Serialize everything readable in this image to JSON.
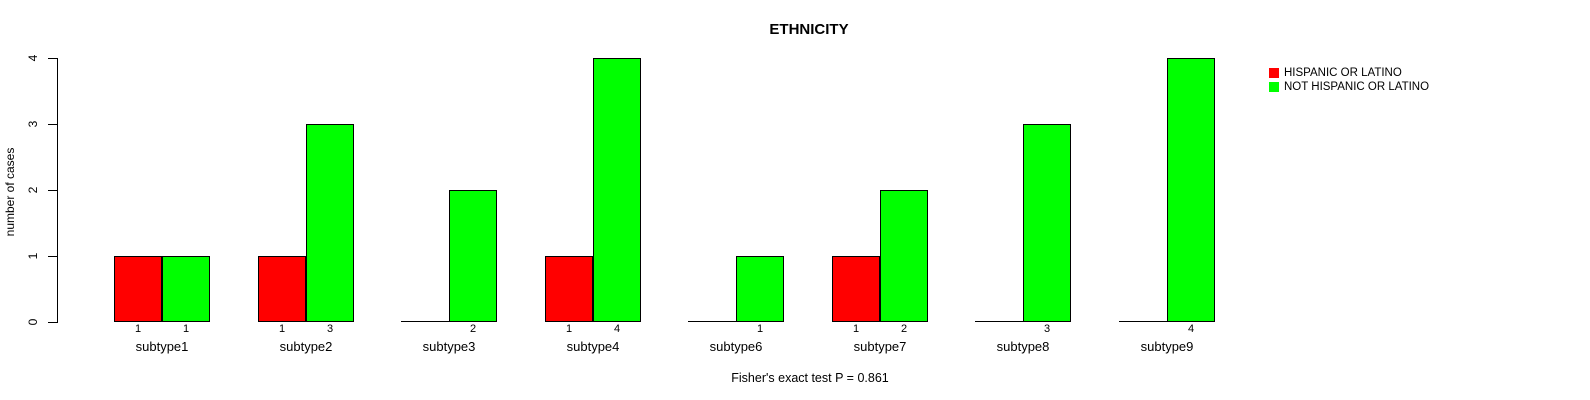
{
  "title": "ETHNICITY",
  "ylabel": "number of cases",
  "caption": "Fisher's exact test P = 0.861",
  "yticks": [
    0,
    1,
    2,
    3,
    4
  ],
  "legend": [
    {
      "label": "HISPANIC OR LATINO",
      "color": "#ff0000"
    },
    {
      "label": "NOT HISPANIC OR LATINO",
      "color": "#00ff00"
    }
  ],
  "chart_data": {
    "type": "bar",
    "title": "ETHNICITY",
    "xlabel": "",
    "ylabel": "number of cases",
    "ylim": [
      0,
      4
    ],
    "grid": false,
    "legend_position": "top-right",
    "annotation": "Fisher's exact test P = 0.861",
    "categories": [
      "subtype1",
      "subtype2",
      "subtype3",
      "subtype4",
      "subtype6",
      "subtype7",
      "subtype8",
      "subtype9"
    ],
    "series": [
      {
        "name": "HISPANIC OR LATINO",
        "color": "#ff0000",
        "values": [
          1,
          1,
          0,
          1,
          0,
          1,
          0,
          0
        ]
      },
      {
        "name": "NOT HISPANIC OR LATINO",
        "color": "#00ff00",
        "values": [
          1,
          3,
          2,
          4,
          1,
          2,
          3,
          4
        ]
      }
    ],
    "bar_value_labels": "shown under each non-zero bar",
    "zero_bars": "drawn as flat baseline segment, no value label"
  }
}
